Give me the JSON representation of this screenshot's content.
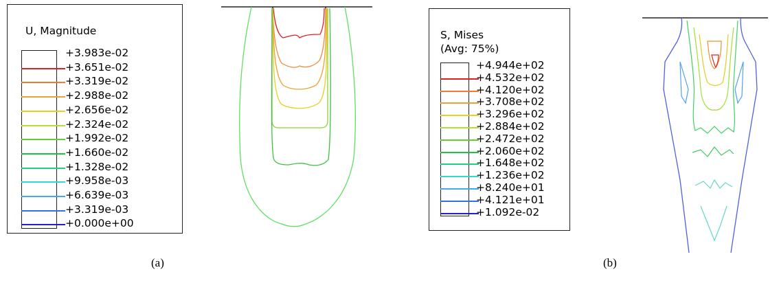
{
  "figure_a": {
    "legend": {
      "title": "U, Magnitude",
      "values": [
        "+3.983e-02",
        "+3.651e-02",
        "+3.319e-02",
        "+2.988e-02",
        "+2.656e-02",
        "+2.324e-02",
        "+1.992e-02",
        "+1.660e-02",
        "+1.328e-02",
        "+9.958e-03",
        "+6.639e-03",
        "+3.319e-03",
        "+0.000e+00"
      ],
      "tick_colors": [
        "#e02020",
        "#f07a30",
        "#f0a030",
        "#e8d020",
        "#b0e030",
        "#60d030",
        "#20c040",
        "#20d080",
        "#30d8d0",
        "#40a8f0",
        "#3070e8",
        "#2020c8"
      ]
    },
    "caption": "(a)",
    "contour_colors": [
      "#e02020",
      "#f07a30",
      "#f0a030",
      "#e8d020",
      "#b0e030",
      "#60d030",
      "#20c040",
      "#40e060"
    ]
  },
  "figure_b": {
    "legend": {
      "title_line1": "S, Mises",
      "title_line2": "(Avg: 75%)",
      "values": [
        "+4.944e+02",
        "+4.532e+02",
        "+4.120e+02",
        "+3.708e+02",
        "+3.296e+02",
        "+2.884e+02",
        "+2.472e+02",
        "+2.060e+02",
        "+1.648e+02",
        "+1.236e+02",
        "+8.240e+01",
        "+4.121e+01",
        "+1.092e-02"
      ],
      "tick_colors": [
        "#e02020",
        "#f07a30",
        "#f0a030",
        "#e8d020",
        "#b0e030",
        "#60d030",
        "#20c040",
        "#20d080",
        "#30d8d0",
        "#40a8f0",
        "#3070e8",
        "#2020c8"
      ]
    },
    "caption": "(b)"
  }
}
